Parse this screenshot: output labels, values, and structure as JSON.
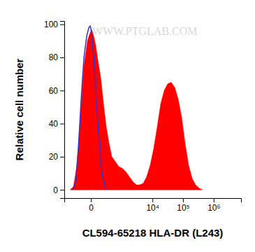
{
  "chart_data": {
    "type": "histogram",
    "x_label": "CL594-65218 HLA-DR (L243)",
    "y_label": "Relative cell number",
    "annotations": [
      "WWW.PTGLAB.COM"
    ],
    "log": "x",
    "xlim": [
      -640,
      7800000
    ],
    "xticks": [
      0,
      {
        "value": 10000,
        "label": "10⁴"
      },
      {
        "value": 100000,
        "label": "10⁵"
      },
      {
        "value": 1000000,
        "label": "10⁶"
      }
    ],
    "ylim": [
      -5,
      102
    ],
    "yticks": [
      0,
      20,
      40,
      60,
      80,
      100
    ],
    "series": [
      {
        "type": "area",
        "color": "#ff0000",
        "x": [
          -381,
          -270,
          -185,
          -119,
          -69,
          -30,
          -11,
          5,
          23,
          44,
          69,
          108,
          157,
          216,
          290,
          381,
          525,
          712,
          955,
          1271,
          1681,
          2213,
          2906,
          3805,
          4975,
          6490,
          8460,
          11030,
          14360,
          18690,
          24300,
          31600,
          41100,
          53400,
          69500,
          90200,
          117300,
          152400,
          198100,
          257400,
          334400,
          434600
        ],
        "values": [
          0,
          2,
          15,
          45,
          75,
          90,
          94,
          97,
          93,
          87,
          78,
          68,
          52,
          38,
          28,
          20,
          17,
          14,
          13,
          11,
          8,
          5,
          3,
          3,
          4,
          8,
          15,
          25,
          38,
          52,
          60,
          64,
          65,
          62,
          55,
          44,
          28,
          15,
          7,
          3,
          1,
          0
        ]
      },
      {
        "type": "line",
        "color": "#3333cc",
        "x": [
          -290,
          -216,
          -157,
          -108,
          -69,
          -37,
          -17,
          -5,
          5,
          23,
          44,
          69,
          98,
          131,
          170,
          216
        ],
        "values": [
          0,
          5,
          25,
          55,
          80,
          93,
          98,
          99,
          95,
          80,
          60,
          40,
          22,
          10,
          3,
          0
        ]
      }
    ]
  }
}
